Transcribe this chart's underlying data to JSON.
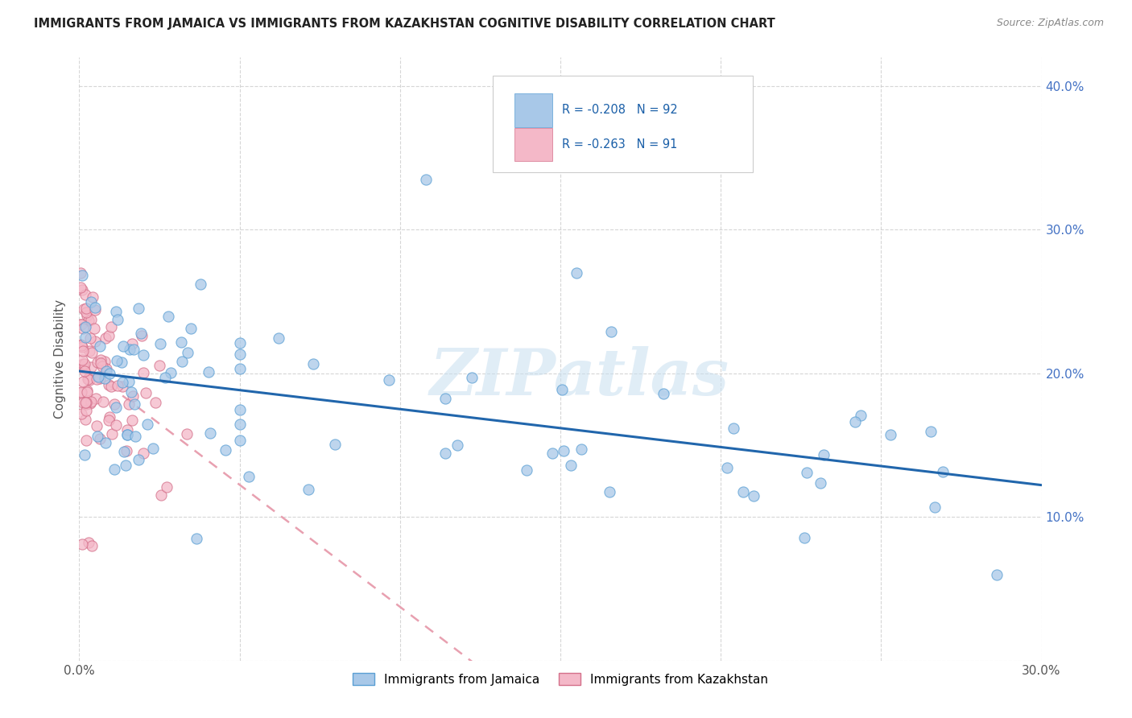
{
  "title": "IMMIGRANTS FROM JAMAICA VS IMMIGRANTS FROM KAZAKHSTAN COGNITIVE DISABILITY CORRELATION CHART",
  "source": "Source: ZipAtlas.com",
  "ylabel": "Cognitive Disability",
  "legend_1_label": "Immigrants from Jamaica",
  "legend_2_label": "Immigrants from Kazakhstan",
  "legend_1_R": "R = -0.208",
  "legend_1_N": "N = 92",
  "legend_2_R": "R = -0.263",
  "legend_2_N": "N = 91",
  "color_jamaica": "#a8c8e8",
  "color_jamaica_edge": "#5a9fd4",
  "color_kazakhstan": "#f4b8c8",
  "color_kazakhstan_edge": "#d4708a",
  "color_regression_jamaica": "#2166ac",
  "color_regression_kazakhstan": "#e8a0b0",
  "xlim": [
    0.0,
    0.3
  ],
  "ylim": [
    0.0,
    0.42
  ],
  "xticks": [
    0.0,
    0.05,
    0.1,
    0.15,
    0.2,
    0.25,
    0.3
  ],
  "yticks": [
    0.0,
    0.1,
    0.2,
    0.3,
    0.4
  ],
  "watermark": "ZIPatlas",
  "background_color": "#ffffff",
  "grid_color": "#cccccc"
}
